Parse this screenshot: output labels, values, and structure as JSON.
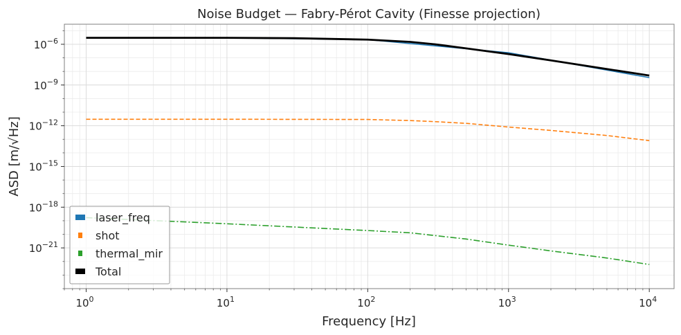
{
  "chart_data": {
    "type": "line",
    "title": "Noise Budget — Fabry-Pérot Cavity (Finesse projection)",
    "xlabel": "Frequency [Hz]",
    "ylabel": "ASD [m/√Hz]",
    "x_scale": "log",
    "y_scale": "log",
    "xlim": [
      0.7,
      15000
    ],
    "ylim": [
      1e-24,
      3e-05
    ],
    "x_ticks": [
      {
        "base": "10",
        "exp": "0",
        "value": 1
      },
      {
        "base": "10",
        "exp": "1",
        "value": 10
      },
      {
        "base": "10",
        "exp": "2",
        "value": 100
      },
      {
        "base": "10",
        "exp": "3",
        "value": 1000
      },
      {
        "base": "10",
        "exp": "4",
        "value": 10000
      }
    ],
    "y_ticks": [
      {
        "base": "10",
        "exp": "−6",
        "value": 1e-06
      },
      {
        "base": "10",
        "exp": "−9",
        "value": 1e-09
      },
      {
        "base": "10",
        "exp": "−12",
        "value": 1e-12
      },
      {
        "base": "10",
        "exp": "−15",
        "value": 1e-15
      },
      {
        "base": "10",
        "exp": "−18",
        "value": 1e-18
      },
      {
        "base": "10",
        "exp": "−21",
        "value": 1e-21
      }
    ],
    "grid": true,
    "legend_position": "lower-left",
    "series": [
      {
        "name": "laser_freq",
        "color": "#1f77b4",
        "style": "solid",
        "x": [
          1,
          10,
          100,
          1000,
          10000
        ],
        "y": [
          3e-06,
          3e-06,
          2.2e-06,
          2.4e-07,
          3.5e-09
        ]
      },
      {
        "name": "shot",
        "color": "#ff7f0e",
        "style": "dashed",
        "x": [
          1,
          10,
          100,
          200,
          300,
          500,
          1000,
          2000,
          5000,
          10000
        ],
        "y": [
          3e-12,
          3e-12,
          2.9e-12,
          2.4e-12,
          2e-12,
          1.5e-12,
          8e-13,
          4.5e-13,
          1.9e-13,
          8e-14
        ]
      },
      {
        "name": "thermal_mir",
        "color": "#2ca02c",
        "style": "dashdot",
        "x": [
          1,
          10,
          100,
          200,
          500,
          1000,
          2000,
          5000,
          10000
        ],
        "y": [
          1.7e-19,
          6e-20,
          1.9e-20,
          1.3e-20,
          4.5e-21,
          1.6e-21,
          6e-22,
          1.8e-22,
          6e-23
        ]
      },
      {
        "name": "Total",
        "color": "#000000",
        "style": "solid",
        "x": [
          1,
          10,
          30,
          100,
          200,
          300,
          500,
          1000,
          2000,
          5000,
          10000
        ],
        "y": [
          3e-06,
          3e-06,
          2.8e-06,
          2.2e-06,
          1.5e-06,
          1e-06,
          5e-07,
          1.9e-07,
          6.5e-08,
          1.5e-08,
          5e-09
        ]
      }
    ]
  }
}
